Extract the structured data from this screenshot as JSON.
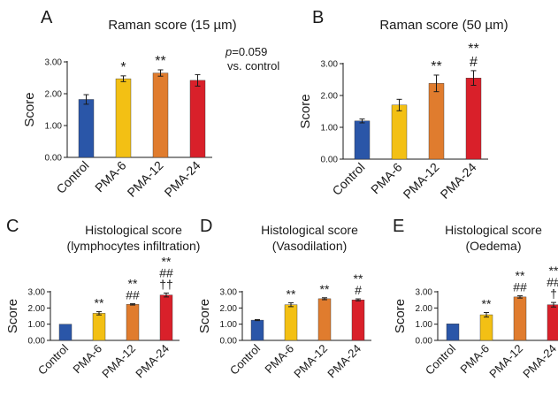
{
  "figure": {
    "colors": {
      "Control": "#2a56a8",
      "PMA-6": "#f3c014",
      "PMA-12": "#e07c2e",
      "PMA-24": "#d9202a",
      "axis": "#1a1a1a",
      "error_bar": "#1a1a1a"
    }
  },
  "chart_data": [
    {
      "panel": "A",
      "type": "bar",
      "title": "Raman score (15 µm)",
      "ylabel": "Score",
      "ylim": [
        0,
        3
      ],
      "yticks": [
        "0.00",
        "1.00",
        "2.00",
        "3.00"
      ],
      "categories": [
        "Control",
        "PMA-6",
        "PMA-12",
        "PMA-24"
      ],
      "values": [
        1.82,
        2.47,
        2.65,
        2.42
      ],
      "errors": [
        0.15,
        0.09,
        0.1,
        0.18
      ],
      "annotations": [
        [],
        [
          "*"
        ],
        [
          "**"
        ],
        []
      ],
      "note": {
        "p_label": "p",
        "p_value": "=0.059",
        "line2": "vs. control"
      }
    },
    {
      "panel": "B",
      "type": "bar",
      "title": "Raman score (50 µm)",
      "ylabel": "Score",
      "ylim": [
        0,
        3
      ],
      "yticks": [
        "0.00",
        "1.00",
        "2.00",
        "3.00"
      ],
      "categories": [
        "Control",
        "PMA-6",
        "PMA-12",
        "PMA-24"
      ],
      "values": [
        1.2,
        1.7,
        2.38,
        2.55
      ],
      "errors": [
        0.06,
        0.18,
        0.26,
        0.23
      ],
      "annotations": [
        [],
        [],
        [
          "**"
        ],
        [
          "**",
          "#"
        ]
      ]
    },
    {
      "panel": "C",
      "type": "bar",
      "title": "Histological score",
      "subtitle": "(lymphocytes infiltration)",
      "ylabel": "Score",
      "ylim": [
        0,
        3
      ],
      "yticks": [
        "0.00",
        "1.00",
        "2.00",
        "3.00"
      ],
      "categories": [
        "Control",
        "PMA-6",
        "PMA-12",
        "PMA-24"
      ],
      "values": [
        1.0,
        1.67,
        2.22,
        2.8
      ],
      "errors": [
        0.0,
        0.1,
        0.04,
        0.12
      ],
      "annotations": [
        [],
        [
          "**"
        ],
        [
          "**",
          "##"
        ],
        [
          "**",
          "##",
          "††"
        ]
      ]
    },
    {
      "panel": "D",
      "type": "bar",
      "title": "Histological score",
      "subtitle": "(Vasodilation)",
      "ylabel": "Score",
      "ylim": [
        0,
        3
      ],
      "yticks": [
        "0.00",
        "1.00",
        "2.00",
        "3.00"
      ],
      "categories": [
        "Control",
        "PMA-6",
        "PMA-12",
        "PMA-24"
      ],
      "values": [
        1.25,
        2.2,
        2.57,
        2.5
      ],
      "errors": [
        0.03,
        0.12,
        0.06,
        0.06
      ],
      "annotations": [
        [],
        [
          "**"
        ],
        [
          "**"
        ],
        [
          "**",
          "#"
        ]
      ]
    },
    {
      "panel": "E",
      "type": "bar",
      "title": "Histological score",
      "subtitle": "(Oedema)",
      "ylabel": "Score",
      "ylim": [
        0,
        3
      ],
      "yticks": [
        "0.00",
        "1.00",
        "2.00",
        "3.00"
      ],
      "categories": [
        "Control",
        "PMA-6",
        "PMA-12",
        "PMA-24"
      ],
      "values": [
        1.02,
        1.58,
        2.68,
        2.2
      ],
      "errors": [
        0.0,
        0.14,
        0.07,
        0.14
      ],
      "annotations": [
        [],
        [
          "**"
        ],
        [
          "**",
          "##"
        ],
        [
          "**",
          "##",
          "†"
        ]
      ]
    }
  ]
}
